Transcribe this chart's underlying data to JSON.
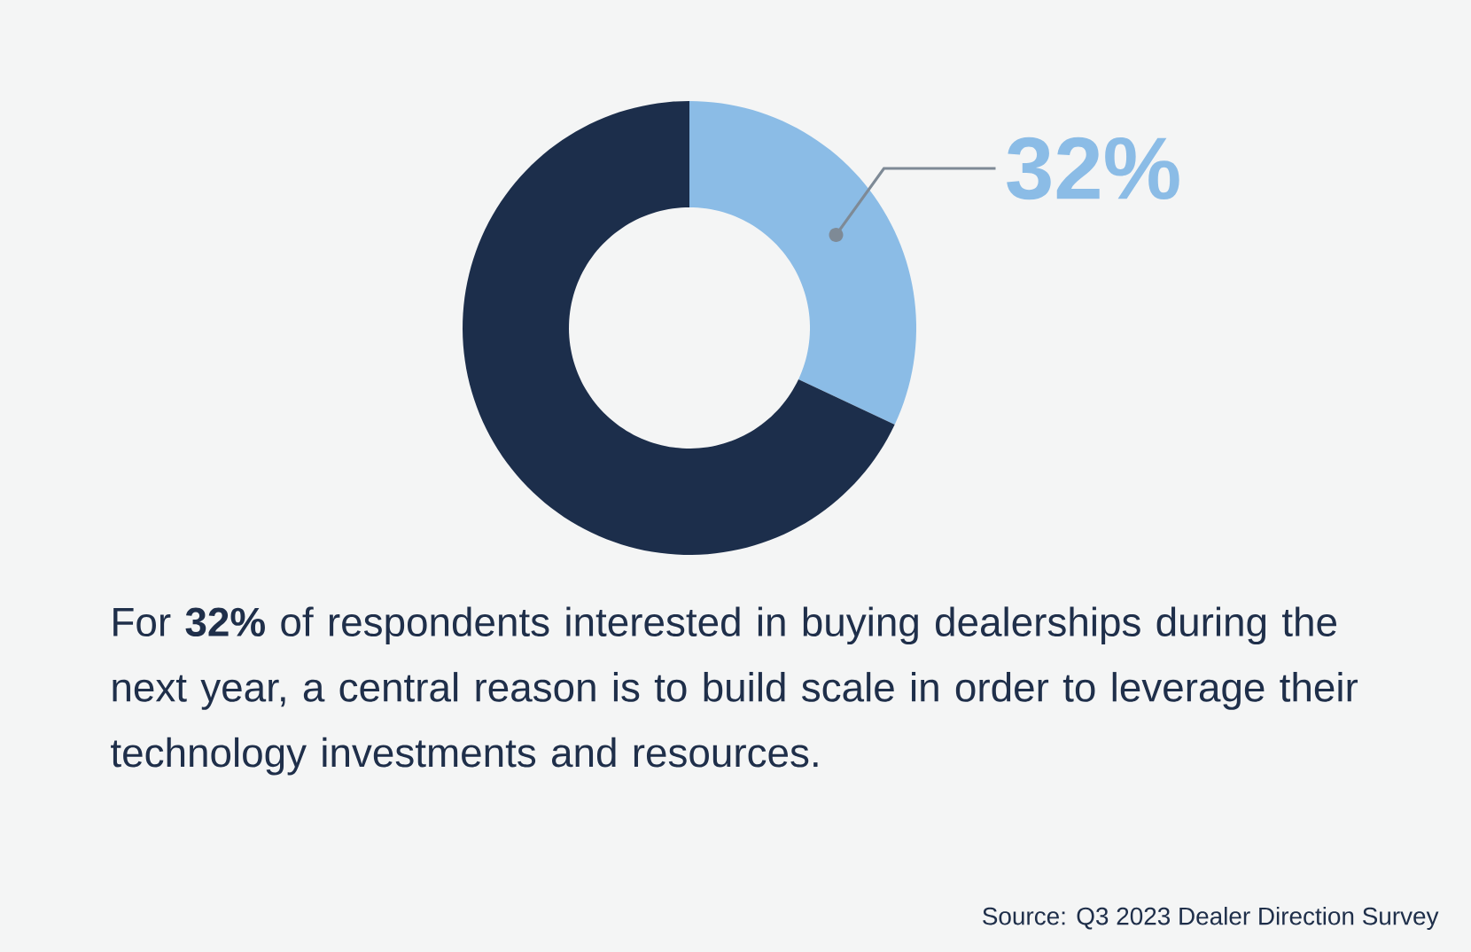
{
  "chart_data": {
    "type": "donut",
    "categories": [
      null,
      null
    ],
    "values": [
      32,
      68
    ],
    "colors": [
      "#8bbce6",
      "#1c2e4b"
    ],
    "value_labels": [
      "32%",
      null
    ],
    "annotations": [
      "For **32%** of respondents interested in buying dealerships during the next year, a central reason is to build scale in order to leverage their technology investments and resources.",
      "Source: Q3 2023 Dealer Direction Survey"
    ]
  }
}
